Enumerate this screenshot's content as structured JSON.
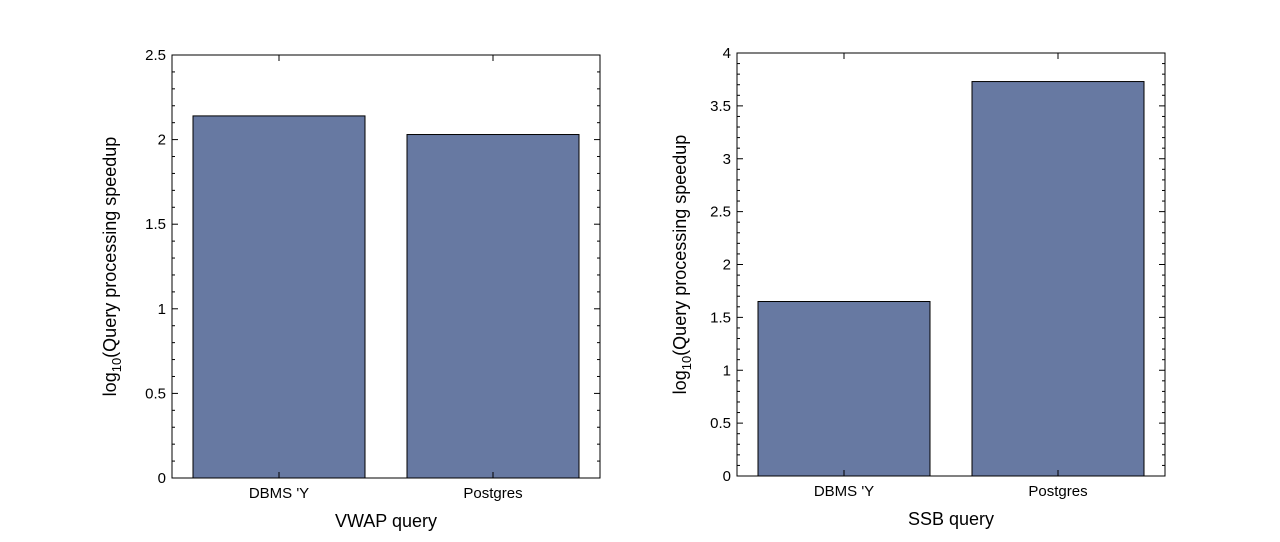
{
  "figure": {
    "background": "#ffffff"
  },
  "chart_data": [
    {
      "type": "bar",
      "categories": [
        "DBMS 'Y",
        "Postgres"
      ],
      "values": [
        2.14,
        2.03
      ],
      "xlabel": "VWAP query",
      "ylabel": {
        "prefix": "log",
        "subscript": "10",
        "suffix": "(Query processing speedup"
      },
      "ylim": [
        0,
        2.5
      ],
      "yticks": [
        "0",
        "0.5",
        "1",
        "1.5",
        "2",
        "2.5"
      ],
      "bar_color": "#6779a2",
      "grid": false,
      "legend": "none"
    },
    {
      "type": "bar",
      "categories": [
        "DBMS 'Y",
        "Postgres"
      ],
      "values": [
        1.65,
        3.73
      ],
      "xlabel": "SSB query",
      "ylabel": {
        "prefix": "log",
        "subscript": "10",
        "suffix": "(Query processing speedup"
      },
      "ylim": [
        0,
        4
      ],
      "yticks": [
        "0",
        "0.5",
        "1",
        "1.5",
        "2",
        "2.5",
        "3",
        "3.5",
        "4"
      ],
      "bar_color": "#6779a2",
      "grid": false,
      "legend": "none"
    }
  ]
}
